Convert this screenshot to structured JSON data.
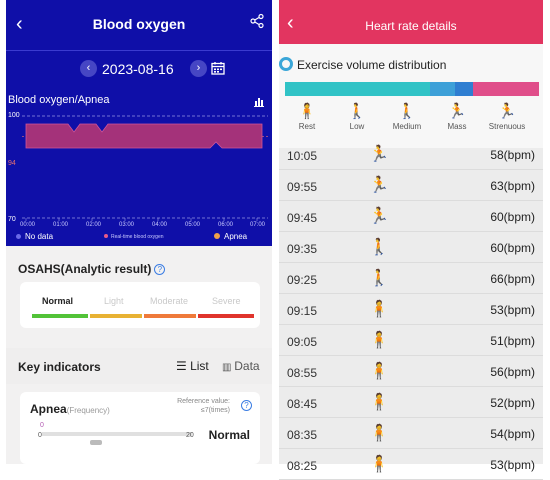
{
  "left": {
    "header": {
      "title": "Blood oxygen",
      "back_icon": "chevron-left-icon",
      "share_icon": "share-icon"
    },
    "date_bar": {
      "date": "2023-08-16",
      "prev_icon": "chevron-left-icon",
      "next_icon": "chevron-right-icon",
      "calendar_icon": "calendar-icon"
    },
    "chart_title": "Blood oxygen/Apnea",
    "chart_icon": "bar-chart-icon",
    "legend": {
      "no_data": "No data",
      "realtime": "Real-time blood oxygen",
      "apnea": "Apnea"
    },
    "osahs": {
      "title": "OSAHS(Analytic result)",
      "help": "?"
    },
    "levels": [
      {
        "label": "Normal",
        "color": "#52c338",
        "active": true
      },
      {
        "label": "Light",
        "color": "#e8b233",
        "active": false
      },
      {
        "label": "Moderate",
        "color": "#ef7a3a",
        "active": false
      },
      {
        "label": "Severe",
        "color": "#e0342c",
        "active": false
      }
    ],
    "key_indicators": {
      "title": "Key indicators",
      "list": "List",
      "data": "Data"
    },
    "apnea_card": {
      "name": "Apnea",
      "unit": "(Frequency)",
      "reference_line1": "Reference value:",
      "reference_line2": "≤7(times)",
      "help": "?",
      "current": "0",
      "min": "0",
      "max": "20",
      "status": "Normal"
    }
  },
  "chart_data": {
    "type": "area",
    "title": "Blood oxygen/Apnea",
    "x": [
      "00:00",
      "01:00",
      "02:00",
      "03:00",
      "04:00",
      "05:00",
      "06:00",
      "07:00"
    ],
    "y_ticks": [
      "100",
      "94",
      "70"
    ],
    "ylim": [
      70,
      100
    ],
    "series": [
      {
        "name": "Real-time blood oxygen",
        "color": "#a4327a"
      }
    ],
    "legend": [
      "No data",
      "Real-time blood oxygen",
      "Apnea"
    ]
  },
  "right": {
    "header": {
      "title": "Heart rate details",
      "back_icon": "chevron-left-icon"
    },
    "section_title": "Exercise volume distribution",
    "distribution": [
      {
        "label": "Rest",
        "color": "#31c3c6",
        "fraction": 0.57
      },
      {
        "label": "Low",
        "color": "#31c3c6",
        "fraction": 0.0
      },
      {
        "label": "Medium",
        "color": "#3da0d8",
        "fraction": 0.1
      },
      {
        "label": "Mass",
        "color": "#2f7ed1",
        "fraction": 0.07
      },
      {
        "label": "Strenuous",
        "color": "#e04e8a",
        "fraction": 0.26
      }
    ],
    "categories": [
      {
        "label": "Rest",
        "icon": "standing-person-icon",
        "color": "#2bb8b8"
      },
      {
        "label": "Low",
        "icon": "walking-person-icon",
        "color": "#3da0d8"
      },
      {
        "label": "Medium",
        "icon": "walking-fast-icon",
        "color": "#2a5fbf"
      },
      {
        "label": "Mass",
        "icon": "running-person-icon",
        "color": "#e04e8a"
      },
      {
        "label": "Strenuous",
        "icon": "sprinting-person-icon",
        "color": "#e0245e"
      }
    ],
    "rows": [
      {
        "time": "10:05",
        "value": "58(bpm)",
        "icon": "running-person-icon",
        "color": "#e0245e",
        "glyph": "🏃"
      },
      {
        "time": "09:55",
        "value": "63(bpm)",
        "icon": "running-person-icon",
        "color": "#e0245e",
        "glyph": "🏃"
      },
      {
        "time": "09:45",
        "value": "60(bpm)",
        "icon": "running-person-icon",
        "color": "#e0245e",
        "glyph": "🏃"
      },
      {
        "time": "09:35",
        "value": "60(bpm)",
        "icon": "walking-fast-icon",
        "color": "#2a5fbf",
        "glyph": "🚶"
      },
      {
        "time": "09:25",
        "value": "66(bpm)",
        "icon": "walking-person-icon",
        "color": "#3da0d8",
        "glyph": "🚶"
      },
      {
        "time": "09:15",
        "value": "53(bpm)",
        "icon": "standing-person-icon",
        "color": "#2bb8b8",
        "glyph": "🧍"
      },
      {
        "time": "09:05",
        "value": "51(bpm)",
        "icon": "standing-person-icon",
        "color": "#2bb8b8",
        "glyph": "🧍"
      },
      {
        "time": "08:55",
        "value": "56(bpm)",
        "icon": "standing-person-icon",
        "color": "#2bb8b8",
        "glyph": "🧍"
      },
      {
        "time": "08:45",
        "value": "52(bpm)",
        "icon": "standing-person-icon",
        "color": "#2bb8b8",
        "glyph": "🧍"
      },
      {
        "time": "08:35",
        "value": "54(bpm)",
        "icon": "standing-person-icon",
        "color": "#2bb8b8",
        "glyph": "🧍"
      },
      {
        "time": "08:25",
        "value": "53(bpm)",
        "icon": "standing-person-icon",
        "color": "#2bb8b8",
        "glyph": "🧍"
      }
    ]
  }
}
